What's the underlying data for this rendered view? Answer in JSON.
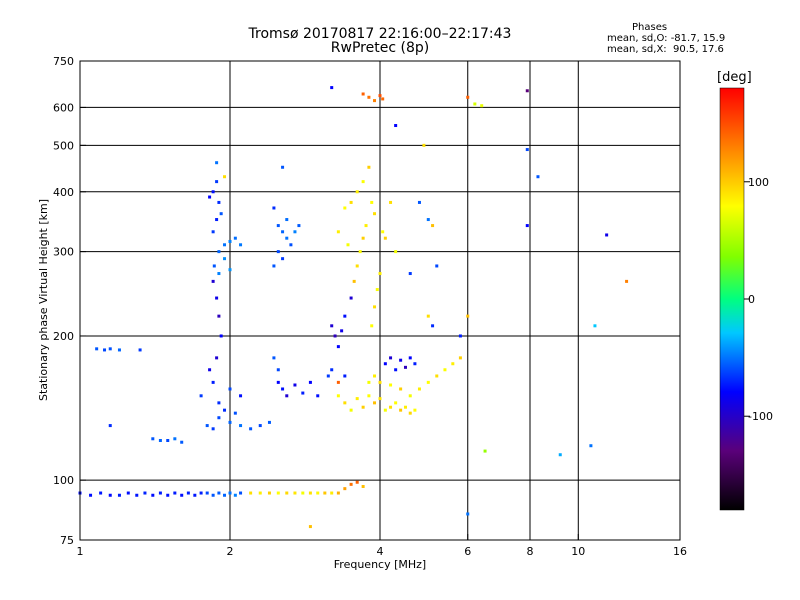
{
  "header": {
    "title": "Tromsø 20170817 22:16:00–22:17:43",
    "subtitle": "RwPretec (8p)"
  },
  "phases": {
    "heading": "Phases",
    "mode_o": "mean, sd,O: -81.7, 15.9",
    "mode_x": "mean, sd,X:  90.5, 17.6"
  },
  "colorbar": {
    "unit": "[deg]",
    "ticks": [
      {
        "value": 100,
        "label": "100"
      },
      {
        "value": 0,
        "label": "0"
      },
      {
        "value": -100,
        "label": "-100"
      }
    ],
    "range": [
      -180,
      180
    ]
  },
  "chart_data": {
    "type": "scatter",
    "title": "Tromsø 20170817 22:16:00–22:17:43",
    "subtitle": "RwPretec (8p)",
    "xlabel": "Frequency [MHz]",
    "ylabel": "Stationary phase Virtual Height [km]",
    "x_scale": "log",
    "y_scale": "log",
    "xlim": [
      1,
      16
    ],
    "ylim": [
      75,
      750
    ],
    "x_ticks": [
      {
        "value": 1,
        "label": "1"
      },
      {
        "value": 2,
        "label": "2"
      },
      {
        "value": 4,
        "label": "4"
      },
      {
        "value": 6,
        "label": "6"
      },
      {
        "value": 8,
        "label": "8"
      },
      {
        "value": 10,
        "label": "10"
      },
      {
        "value": 16,
        "label": "16"
      }
    ],
    "y_ticks": [
      {
        "value": 75,
        "label": "75"
      },
      {
        "value": 100,
        "label": "100"
      },
      {
        "value": 200,
        "label": "200"
      },
      {
        "value": 300,
        "label": "300"
      },
      {
        "value": 400,
        "label": "400"
      },
      {
        "value": 500,
        "label": "500"
      },
      {
        "value": 600,
        "label": "600"
      },
      {
        "value": 750,
        "label": "750"
      }
    ],
    "grid_x": [
      2,
      4,
      6,
      8,
      10
    ],
    "grid_y": [
      100,
      200,
      300,
      400,
      500,
      600
    ],
    "grid": true,
    "color_by": "phase [deg]",
    "points": [
      [
        1.0,
        94,
        -95
      ],
      [
        1.05,
        93,
        -95
      ],
      [
        1.1,
        94,
        -92
      ],
      [
        1.15,
        93,
        -97
      ],
      [
        1.2,
        93,
        -90
      ],
      [
        1.25,
        94,
        -95
      ],
      [
        1.3,
        93,
        -93
      ],
      [
        1.35,
        94,
        -88
      ],
      [
        1.4,
        93,
        -96
      ],
      [
        1.45,
        94,
        -90
      ],
      [
        1.5,
        93,
        -94
      ],
      [
        1.55,
        94,
        -91
      ],
      [
        1.6,
        93,
        -95
      ],
      [
        1.65,
        94,
        -89
      ],
      [
        1.7,
        93,
        -92
      ],
      [
        1.75,
        94,
        -90
      ],
      [
        1.8,
        94,
        -75
      ],
      [
        1.85,
        93,
        -70
      ],
      [
        1.9,
        94,
        -68
      ],
      [
        1.95,
        93,
        -65
      ],
      [
        2.0,
        94,
        -60
      ],
      [
        2.05,
        93,
        -55
      ],
      [
        2.1,
        94,
        -72
      ],
      [
        2.2,
        94,
        110
      ],
      [
        2.3,
        94,
        105
      ],
      [
        2.4,
        94,
        115
      ],
      [
        2.5,
        94,
        100
      ],
      [
        2.6,
        94,
        112
      ],
      [
        2.7,
        94,
        108
      ],
      [
        2.8,
        94,
        95
      ],
      [
        2.9,
        94,
        110
      ],
      [
        3.0,
        94,
        102
      ],
      [
        3.1,
        94,
        118
      ],
      [
        3.2,
        94,
        106
      ],
      [
        3.3,
        94,
        125
      ],
      [
        3.4,
        96,
        130
      ],
      [
        3.5,
        98,
        145
      ],
      [
        3.6,
        99,
        150
      ],
      [
        3.7,
        97,
        120
      ],
      [
        1.08,
        188,
        -70
      ],
      [
        1.12,
        187,
        -75
      ],
      [
        1.15,
        188,
        -72
      ],
      [
        1.2,
        187,
        -65
      ],
      [
        1.32,
        187,
        -80
      ],
      [
        1.4,
        122,
        -70
      ],
      [
        1.45,
        121,
        -65
      ],
      [
        1.5,
        121,
        -75
      ],
      [
        1.55,
        122,
        -60
      ],
      [
        1.6,
        120,
        -68
      ],
      [
        1.15,
        130,
        -85
      ],
      [
        1.8,
        130,
        -70
      ],
      [
        1.85,
        128,
        -80
      ],
      [
        1.9,
        135,
        -75
      ],
      [
        1.95,
        140,
        -85
      ],
      [
        2.0,
        132,
        -65
      ],
      [
        2.05,
        138,
        -72
      ],
      [
        2.1,
        130,
        -60
      ],
      [
        2.2,
        128,
        -70
      ],
      [
        2.3,
        130,
        -75
      ],
      [
        2.4,
        132,
        -68
      ],
      [
        1.75,
        150,
        -80
      ],
      [
        1.85,
        160,
        -90
      ],
      [
        1.9,
        145,
        -85
      ],
      [
        2.0,
        155,
        -75
      ],
      [
        2.1,
        150,
        -95
      ],
      [
        1.82,
        170,
        -105
      ],
      [
        1.88,
        180,
        -110
      ],
      [
        1.92,
        200,
        -100
      ],
      [
        1.9,
        220,
        -115
      ],
      [
        1.88,
        240,
        -105
      ],
      [
        1.85,
        260,
        -110
      ],
      [
        1.86,
        280,
        -70
      ],
      [
        1.9,
        300,
        -65
      ],
      [
        1.95,
        310,
        -60
      ],
      [
        2.0,
        315,
        -55
      ],
      [
        2.05,
        320,
        -62
      ],
      [
        2.1,
        310,
        -58
      ],
      [
        1.95,
        290,
        -50
      ],
      [
        1.9,
        270,
        -55
      ],
      [
        2.0,
        275,
        -48
      ],
      [
        1.85,
        330,
        -80
      ],
      [
        1.88,
        350,
        -90
      ],
      [
        1.9,
        380,
        -85
      ],
      [
        1.85,
        400,
        -95
      ],
      [
        1.88,
        420,
        -80
      ],
      [
        1.82,
        390,
        -100
      ],
      [
        1.92,
        360,
        -70
      ],
      [
        1.88,
        460,
        -60
      ],
      [
        1.95,
        430,
        110
      ],
      [
        2.5,
        340,
        -70
      ],
      [
        2.55,
        330,
        -65
      ],
      [
        2.6,
        320,
        -60
      ],
      [
        2.65,
        310,
        -72
      ],
      [
        2.7,
        330,
        -55
      ],
      [
        2.75,
        340,
        -68
      ],
      [
        2.5,
        300,
        -75
      ],
      [
        2.55,
        290,
        -80
      ],
      [
        2.45,
        280,
        -70
      ],
      [
        2.6,
        350,
        -62
      ],
      [
        2.55,
        450,
        -70
      ],
      [
        2.45,
        370,
        -85
      ],
      [
        2.5,
        160,
        -100
      ],
      [
        2.55,
        155,
        -95
      ],
      [
        2.6,
        150,
        -110
      ],
      [
        2.7,
        158,
        -105
      ],
      [
        2.8,
        152,
        -90
      ],
      [
        2.9,
        160,
        -100
      ],
      [
        3.0,
        150,
        -95
      ],
      [
        2.45,
        180,
        -70
      ],
      [
        2.5,
        170,
        -75
      ],
      [
        3.2,
        210,
        -110
      ],
      [
        3.25,
        200,
        -115
      ],
      [
        3.3,
        190,
        -100
      ],
      [
        3.35,
        205,
        -105
      ],
      [
        3.4,
        220,
        -95
      ],
      [
        3.15,
        165,
        -80
      ],
      [
        3.2,
        170,
        -85
      ],
      [
        3.3,
        160,
        150
      ],
      [
        3.4,
        165,
        -90
      ],
      [
        3.5,
        240,
        -110
      ],
      [
        3.55,
        260,
        120
      ],
      [
        3.6,
        280,
        110
      ],
      [
        3.65,
        300,
        100
      ],
      [
        3.7,
        320,
        115
      ],
      [
        3.75,
        340,
        105
      ],
      [
        3.3,
        150,
        100
      ],
      [
        3.4,
        145,
        110
      ],
      [
        3.5,
        140,
        95
      ],
      [
        3.6,
        148,
        105
      ],
      [
        3.7,
        142,
        115
      ],
      [
        3.8,
        150,
        100
      ],
      [
        3.9,
        145,
        120
      ],
      [
        4.0,
        148,
        108
      ],
      [
        4.1,
        140,
        95
      ],
      [
        4.2,
        142,
        110
      ],
      [
        4.3,
        145,
        100
      ],
      [
        4.4,
        140,
        118
      ],
      [
        4.5,
        142,
        105
      ],
      [
        4.6,
        138,
        112
      ],
      [
        4.7,
        140,
        100
      ],
      [
        3.8,
        160,
        95
      ],
      [
        3.9,
        165,
        105
      ],
      [
        4.0,
        160,
        110
      ],
      [
        4.2,
        158,
        100
      ],
      [
        4.4,
        155,
        115
      ],
      [
        4.6,
        150,
        95
      ],
      [
        4.8,
        155,
        105
      ],
      [
        5.0,
        160,
        100
      ],
      [
        5.2,
        165,
        110
      ],
      [
        5.4,
        170,
        98
      ],
      [
        5.6,
        175,
        105
      ],
      [
        5.8,
        180,
        115
      ],
      [
        3.4,
        370,
        100
      ],
      [
        3.5,
        380,
        110
      ],
      [
        3.6,
        400,
        105
      ],
      [
        3.7,
        420,
        98
      ],
      [
        3.8,
        450,
        115
      ],
      [
        3.85,
        380,
        100
      ],
      [
        3.9,
        360,
        110
      ],
      [
        3.3,
        330,
        105
      ],
      [
        3.45,
        310,
        95
      ],
      [
        4.05,
        330,
        100
      ],
      [
        4.1,
        320,
        115
      ],
      [
        4.2,
        380,
        110
      ],
      [
        4.3,
        300,
        95
      ],
      [
        4.0,
        270,
        105
      ],
      [
        3.95,
        250,
        98
      ],
      [
        3.9,
        230,
        110
      ],
      [
        3.85,
        210,
        100
      ],
      [
        4.1,
        175,
        -100
      ],
      [
        4.2,
        180,
        -110
      ],
      [
        4.3,
        170,
        -95
      ],
      [
        4.4,
        178,
        -105
      ],
      [
        4.5,
        172,
        -115
      ],
      [
        4.6,
        180,
        -100
      ],
      [
        4.7,
        175,
        -90
      ],
      [
        3.7,
        640,
        150
      ],
      [
        3.8,
        630,
        145
      ],
      [
        3.9,
        620,
        140
      ],
      [
        4.0,
        635,
        155
      ],
      [
        4.05,
        625,
        148
      ],
      [
        4.3,
        550,
        -100
      ],
      [
        4.9,
        500,
        110
      ],
      [
        6.2,
        610,
        80
      ],
      [
        6.4,
        605,
        90
      ],
      [
        6.0,
        630,
        150
      ],
      [
        5.0,
        350,
        -60
      ],
      [
        5.1,
        340,
        120
      ],
      [
        4.8,
        380,
        -70
      ],
      [
        5.2,
        280,
        -75
      ],
      [
        4.6,
        270,
        -80
      ],
      [
        5.0,
        220,
        110
      ],
      [
        5.1,
        210,
        -85
      ],
      [
        6.0,
        220,
        120
      ],
      [
        5.8,
        200,
        -90
      ],
      [
        3.2,
        660,
        -100
      ],
      [
        7.9,
        650,
        -130
      ],
      [
        7.9,
        490,
        -75
      ],
      [
        8.3,
        430,
        -70
      ],
      [
        7.9,
        340,
        -100
      ],
      [
        11.4,
        325,
        -105
      ],
      [
        12.5,
        260,
        140
      ],
      [
        10.8,
        210,
        -30
      ],
      [
        9.2,
        113,
        -40
      ],
      [
        10.6,
        118,
        -60
      ],
      [
        6.5,
        115,
        50
      ],
      [
        6.0,
        85,
        -60
      ],
      [
        2.9,
        80,
        120
      ]
    ]
  }
}
